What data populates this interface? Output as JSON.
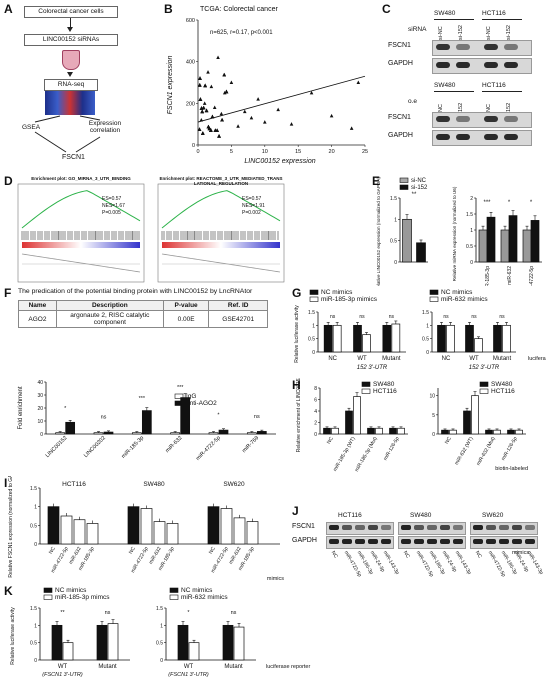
{
  "panels": {
    "A": {
      "label": "A",
      "steps": [
        "Colorectal cancer cells",
        "LINC00152 siRNAs",
        "RNA-seq",
        "GSEA",
        "Expression correlation",
        "FSCN1"
      ]
    },
    "B": {
      "label": "B",
      "title": "TCGA: Colorectal cancer",
      "stats": "n=625, r=0.17, p<0.001",
      "xlabel": "LINC00152 expression",
      "ylabel": "FSCN1 expression",
      "xticks": [
        "0",
        "5",
        "10",
        "15",
        "20",
        "25"
      ],
      "yticks": [
        "0",
        "200",
        "400",
        "600"
      ]
    },
    "C": {
      "label": "C",
      "top": {
        "row_label": "siRNA",
        "groups": [
          "SW480",
          "HCT116"
        ],
        "lanes": [
          "si-NC",
          "si-152",
          "si-NC",
          "si-152"
        ],
        "bands": [
          "FSCN1",
          "GAPDH"
        ]
      },
      "bottom": {
        "row_label": "o.e",
        "groups": [
          "SW480",
          "HCT116"
        ],
        "lanes": [
          "NC",
          "152",
          "NC",
          "152"
        ],
        "bands": [
          "FSCN1",
          "GAPDH"
        ]
      }
    },
    "D": {
      "label": "D",
      "left": {
        "title": "Enrichment plot: GO_MIRNA_3_UTR_BINDING",
        "es": "ES=0.57",
        "nes": "NES=1.67",
        "p": "P=0.005"
      },
      "right": {
        "title": "Enrichment plot: REACTOME_3_UTR_MEDIATED_TRANSLATIONAL_REGULATION",
        "es": "ES=0.57",
        "nes": "NES=1.91",
        "p": "P=0.002"
      }
    },
    "E": {
      "label": "E",
      "legend": [
        "si-NC",
        "si-152"
      ],
      "left_ylabel": "Relative LINC00152 expression (normalized to GAPDH)",
      "right_ylabel": "Relative miRNA expression (normalized to U6)",
      "right_categories": [
        "miR-185-3p",
        "miR-632",
        "miR-4722-5p"
      ],
      "sig_left": "**",
      "sig_right": [
        "***",
        "*",
        "*"
      ]
    },
    "F": {
      "label": "F",
      "title": "The predication of the potential binding protein with LINC00152 by LncRNAtor",
      "table_headers": [
        "Name",
        "Description",
        "P-value",
        "Ref. ID"
      ],
      "table_row": [
        "AGO2",
        "argonaute 2, RISC catalytic component",
        "0.00E",
        "GSE42701"
      ],
      "legend": [
        "IgG",
        "anti-AGO2"
      ],
      "ylabel": "Fold enrichment",
      "categories": [
        "LINC00152",
        "LINC00202",
        "miR-185-3p",
        "miR-632",
        "miR-4722-5p",
        "miR-769"
      ],
      "sig": [
        "*",
        "ns",
        "***",
        "***",
        "*",
        "ns"
      ]
    },
    "G": {
      "label": "G",
      "legend_left": [
        "NC mimics",
        "miR-185-3p mimics"
      ],
      "legend_right": [
        "NC mimics",
        "miR-632 mimics"
      ],
      "ylabel": "Relative luciferase activity",
      "groups": [
        "NC",
        "WT",
        "Mutant"
      ],
      "utr": "152 3'-UTR",
      "reporter": "luciferase reporter"
    },
    "H": {
      "label": "H",
      "legend": [
        "SW480",
        "HCT116"
      ],
      "ylabel": "Relative enrichment of LINC00152",
      "left_categories": [
        "NC",
        "miR-185-3p (WT)",
        "miR-185-3p (Mut)",
        "miR-126-5p"
      ],
      "right_categories": [
        "NC",
        "miR-632 (WT)",
        "miR-632 (Mut)",
        "miR-126-5p"
      ],
      "note": "biotin-labeled"
    },
    "I": {
      "label": "I",
      "ylabel": "Relative FSCN1 expression (normalized to GAPDH)",
      "groups": [
        "HCT116",
        "SW480",
        "SW620"
      ],
      "categories": [
        "NC",
        "miR-4722-5p",
        "miR-632",
        "miR-185-3p"
      ],
      "note": "mimics"
    },
    "J": {
      "label": "J",
      "groups": [
        "HCT116",
        "SW480",
        "SW620"
      ],
      "bands": [
        "FSCN1",
        "GAPDH"
      ],
      "lanes": [
        "NC",
        "miR-4722-5p",
        "miR-185-3p",
        "miR-24-3p",
        "miR-143-3p"
      ],
      "note": "mimics"
    },
    "K": {
      "label": "K",
      "legend_left": [
        "NC mimics",
        "miR-185-3p mimcs"
      ],
      "legend_right": [
        "NC mimics",
        "miR-632 mimics"
      ],
      "ylabel": "Relative luciferase activity",
      "groups": [
        "WT",
        "Mutant"
      ],
      "sub": "(FSCN1 3'-UTR)",
      "reporter": "luciferase reporter",
      "sig": [
        "**",
        "ns"
      ]
    }
  },
  "chart_data": [
    {
      "type": "scatter",
      "title": "TCGA: Colorectal cancer",
      "xlabel": "LINC00152 expression",
      "ylabel": "FSCN1 expression",
      "xlim": [
        0,
        25
      ],
      "ylim": [
        0,
        600
      ],
      "note": "dense cluster near origin; positive trend line",
      "x": [
        0.5,
        1,
        1.5,
        2,
        2.5,
        3,
        3.5,
        4,
        5,
        6,
        7,
        8,
        9,
        10,
        12,
        14,
        17,
        20,
        23,
        24
      ],
      "y": [
        120,
        200,
        350,
        280,
        180,
        420,
        150,
        250,
        300,
        90,
        160,
        130,
        220,
        110,
        170,
        100,
        250,
        140,
        80,
        300
      ]
    },
    {
      "type": "bar",
      "title": "",
      "categories": [
        "si-NC",
        "si-152"
      ],
      "values": [
        1.0,
        0.45
      ],
      "ylim": [
        0,
        1.5
      ]
    },
    {
      "type": "bar",
      "title": "",
      "categories": [
        "miR-185-3p",
        "miR-632",
        "miR-4722-5p"
      ],
      "series": [
        {
          "name": "si-NC",
          "values": [
            1.0,
            1.0,
            1.0
          ]
        },
        {
          "name": "si-152",
          "values": [
            1.4,
            1.45,
            1.3
          ]
        }
      ],
      "ylim": [
        0,
        2.0
      ]
    },
    {
      "type": "bar",
      "title": "",
      "categories": [
        "LINC00152",
        "LINC00202",
        "miR-185-3p",
        "miR-632",
        "miR-4722-5p",
        "miR-769"
      ],
      "series": [
        {
          "name": "IgG",
          "values": [
            1,
            1,
            1,
            1,
            1,
            1
          ]
        },
        {
          "name": "anti-AGO2",
          "values": [
            9,
            1.5,
            18,
            28,
            3,
            2
          ]
        }
      ],
      "ylim": [
        0,
        40
      ]
    },
    {
      "type": "bar",
      "title": "",
      "categories": [
        "NC",
        "WT",
        "Mutant"
      ],
      "series": [
        {
          "name": "NC mimics",
          "values": [
            1.0,
            1.0,
            1.0
          ]
        },
        {
          "name": "miR-185-3p mimics",
          "values": [
            1.0,
            0.65,
            1.05
          ]
        }
      ],
      "ylim": [
        0,
        1.5
      ]
    },
    {
      "type": "bar",
      "title": "",
      "categories": [
        "NC",
        "WT",
        "Mutant"
      ],
      "series": [
        {
          "name": "NC mimics",
          "values": [
            1.0,
            1.0,
            1.0
          ]
        },
        {
          "name": "miR-632 mimics",
          "values": [
            1.0,
            0.5,
            1.0
          ]
        }
      ],
      "ylim": [
        0,
        1.5
      ]
    },
    {
      "type": "bar",
      "title": "",
      "categories": [
        "NC",
        "miR-185-3p (WT)",
        "miR-185-3p (Mut)",
        "miR-126-5p"
      ],
      "series": [
        {
          "name": "SW480",
          "values": [
            1,
            4,
            1,
            1
          ]
        },
        {
          "name": "HCT116",
          "values": [
            1,
            6.5,
            1,
            1
          ]
        }
      ],
      "ylim": [
        0,
        8
      ]
    },
    {
      "type": "bar",
      "title": "",
      "categories": [
        "NC",
        "miR-632 (WT)",
        "miR-632 (Mut)",
        "miR-126-5p"
      ],
      "series": [
        {
          "name": "SW480",
          "values": [
            1,
            6,
            1,
            1
          ]
        },
        {
          "name": "HCT116",
          "values": [
            1,
            10,
            1,
            1
          ]
        }
      ],
      "ylim": [
        0,
        12
      ]
    },
    {
      "type": "bar",
      "title": "",
      "categories": [
        "NC",
        "miR-4722-5p",
        "miR-632",
        "miR-185-3p"
      ],
      "series": [
        {
          "name": "HCT116",
          "values": [
            1.0,
            0.75,
            0.65,
            0.55
          ]
        },
        {
          "name": "SW480",
          "values": [
            1.0,
            0.95,
            0.6,
            0.55
          ]
        },
        {
          "name": "SW620",
          "values": [
            1.0,
            0.95,
            0.7,
            0.6
          ]
        }
      ],
      "ylim": [
        0,
        1.5
      ]
    },
    {
      "type": "bar",
      "title": "",
      "categories": [
        "WT",
        "Mutant"
      ],
      "series": [
        {
          "name": "NC mimics",
          "values": [
            1.0,
            1.0
          ]
        },
        {
          "name": "miR-185-3p mimcs",
          "values": [
            0.5,
            1.05
          ]
        }
      ],
      "ylim": [
        0,
        1.5
      ]
    },
    {
      "type": "bar",
      "title": "",
      "categories": [
        "WT",
        "Mutant"
      ],
      "series": [
        {
          "name": "NC mimics",
          "values": [
            1.0,
            1.0
          ]
        },
        {
          "name": "miR-632 mimics",
          "values": [
            0.5,
            0.95
          ]
        }
      ],
      "ylim": [
        0,
        1.5
      ]
    }
  ]
}
